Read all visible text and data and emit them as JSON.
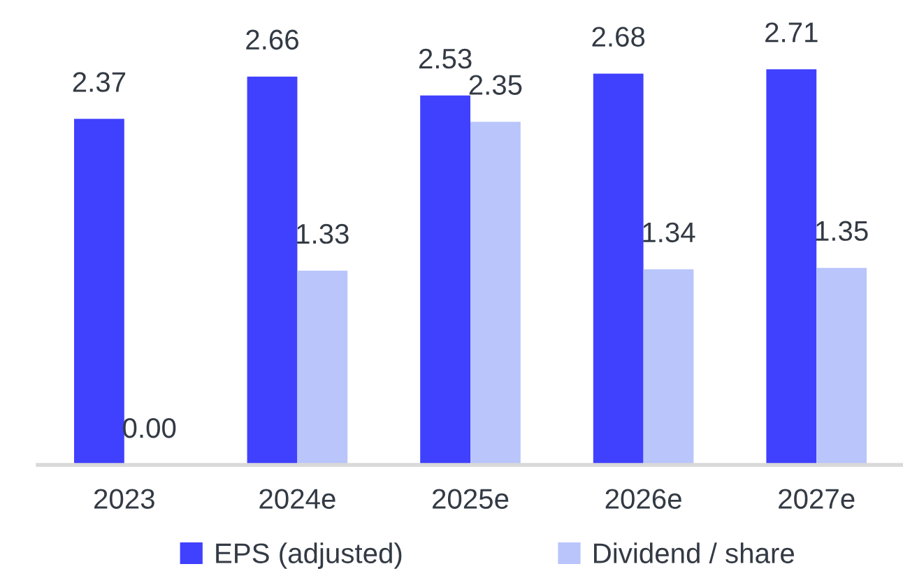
{
  "chart_data": {
    "type": "bar",
    "categories": [
      "2023",
      "2024e",
      "2025e",
      "2026e",
      "2027e"
    ],
    "series": [
      {
        "name": "EPS (adjusted)",
        "color": "#4040ff",
        "values": [
          2.37,
          2.66,
          2.53,
          2.68,
          2.71
        ],
        "value_labels": [
          "2.37",
          "2.66",
          "2.53",
          "2.68",
          "2.71"
        ]
      },
      {
        "name": "Dividend / share",
        "color": "#b9c5fb",
        "values": [
          0.0,
          1.33,
          2.35,
          1.34,
          1.35
        ],
        "value_labels": [
          "0.00",
          "1.33",
          "2.35",
          "1.34",
          "1.35"
        ]
      }
    ],
    "legend": "bottom"
  }
}
